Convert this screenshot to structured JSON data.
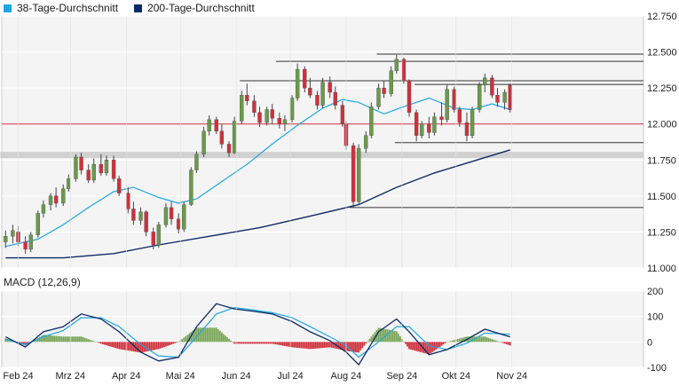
{
  "legend": {
    "ma38_label": "38-Tage-Durchschnitt",
    "ma200_label": "200-Tage-Durchschnitt",
    "ma38_color": "#1ea7df",
    "ma200_color": "#0d2a66"
  },
  "colors": {
    "up": "#6a9a4a",
    "down": "#d0303c",
    "macd_line": "#0d2a66",
    "signal_line": "#1ea7df",
    "hist_pos": "#7aa65a",
    "hist_neg": "#d0303c",
    "ref_line": "#d0303c",
    "sr_line": "#333333"
  },
  "chart_data": [
    {
      "type": "candlestick",
      "ylim": [
        11000,
        12750
      ],
      "yticks": [
        "11.000",
        "11.250",
        "11.500",
        "11.750",
        "12.000",
        "12.250",
        "12.500",
        "12.750"
      ],
      "xticks": [
        "Feb 24",
        "Mrz 24",
        "Apr 24",
        "Mai 24",
        "Jun 24",
        "Jul 24",
        "Aug 24",
        "Sep 24",
        "Okt 24",
        "Nov 24"
      ],
      "reference_line": 12000,
      "support_resistance": [
        {
          "from": "Jan 25",
          "to": "Jun 05",
          "value": 11785,
          "style": "band"
        },
        {
          "from": "Jun 05",
          "to": "Okt 31",
          "value": 12300
        },
        {
          "from": "Jun 25",
          "to": "Okt 31",
          "value": 12435
        },
        {
          "from": "Aug 20",
          "to": "Okt 31",
          "value": 12485
        },
        {
          "from": "Sep 10",
          "to": "Okt 31",
          "value": 12275
        },
        {
          "from": "Aug 30",
          "to": "Okt 31",
          "value": 11870
        },
        {
          "from": "Aug 05",
          "to": "Okt 31",
          "value": 11420
        }
      ],
      "candles": [
        {
          "d": "Jan 25",
          "o": 11180,
          "h": 11260,
          "l": 11140,
          "c": 11220
        },
        {
          "d": "Jan 29",
          "o": 11220,
          "h": 11300,
          "l": 11170,
          "c": 11260
        },
        {
          "d": "Feb 01",
          "o": 11250,
          "h": 11290,
          "l": 11150,
          "c": 11180
        },
        {
          "d": "Feb 05",
          "o": 11180,
          "h": 11220,
          "l": 11100,
          "c": 11130
        },
        {
          "d": "Feb 08",
          "o": 11130,
          "h": 11250,
          "l": 11110,
          "c": 11230
        },
        {
          "d": "Feb 12",
          "o": 11230,
          "h": 11400,
          "l": 11210,
          "c": 11380
        },
        {
          "d": "Feb 15",
          "o": 11380,
          "h": 11470,
          "l": 11350,
          "c": 11440
        },
        {
          "d": "Feb 19",
          "o": 11440,
          "h": 11520,
          "l": 11400,
          "c": 11500
        },
        {
          "d": "Feb 22",
          "o": 11500,
          "h": 11560,
          "l": 11420,
          "c": 11450
        },
        {
          "d": "Feb 26",
          "o": 11450,
          "h": 11580,
          "l": 11430,
          "c": 11550
        },
        {
          "d": "Feb 29",
          "o": 11550,
          "h": 11650,
          "l": 11530,
          "c": 11620
        },
        {
          "d": "Mrz 04",
          "o": 11620,
          "h": 11790,
          "l": 11600,
          "c": 11770
        },
        {
          "d": "Mrz 07",
          "o": 11770,
          "h": 11800,
          "l": 11650,
          "c": 11680
        },
        {
          "d": "Mrz 11",
          "o": 11680,
          "h": 11720,
          "l": 11590,
          "c": 11610
        },
        {
          "d": "Mrz 14",
          "o": 11610,
          "h": 11760,
          "l": 11590,
          "c": 11720
        },
        {
          "d": "Mrz 18",
          "o": 11720,
          "h": 11790,
          "l": 11640,
          "c": 11660
        },
        {
          "d": "Mrz 21",
          "o": 11660,
          "h": 11780,
          "l": 11640,
          "c": 11750
        },
        {
          "d": "Mrz 25",
          "o": 11750,
          "h": 11780,
          "l": 11600,
          "c": 11620
        },
        {
          "d": "Mrz 28",
          "o": 11620,
          "h": 11640,
          "l": 11500,
          "c": 11520
        },
        {
          "d": "Apr 02",
          "o": 11520,
          "h": 11560,
          "l": 11380,
          "c": 11410
        },
        {
          "d": "Apr 05",
          "o": 11410,
          "h": 11460,
          "l": 11300,
          "c": 11330
        },
        {
          "d": "Apr 09",
          "o": 11330,
          "h": 11420,
          "l": 11300,
          "c": 11390
        },
        {
          "d": "Apr 12",
          "o": 11390,
          "h": 11400,
          "l": 11220,
          "c": 11250
        },
        {
          "d": "Apr 16",
          "o": 11250,
          "h": 11280,
          "l": 11130,
          "c": 11160
        },
        {
          "d": "Apr 19",
          "o": 11160,
          "h": 11320,
          "l": 11140,
          "c": 11300
        },
        {
          "d": "Apr 23",
          "o": 11300,
          "h": 11450,
          "l": 11280,
          "c": 11420
        },
        {
          "d": "Apr 26",
          "o": 11420,
          "h": 11460,
          "l": 11300,
          "c": 11340
        },
        {
          "d": "Apr 30",
          "o": 11340,
          "h": 11380,
          "l": 11240,
          "c": 11270
        },
        {
          "d": "Mai 03",
          "o": 11270,
          "h": 11460,
          "l": 11250,
          "c": 11440
        },
        {
          "d": "Mai 07",
          "o": 11440,
          "h": 11700,
          "l": 11430,
          "c": 11680
        },
        {
          "d": "Mai 10",
          "o": 11680,
          "h": 11810,
          "l": 11660,
          "c": 11790
        },
        {
          "d": "Mai 14",
          "o": 11790,
          "h": 11980,
          "l": 11770,
          "c": 11950
        },
        {
          "d": "Mai 17",
          "o": 11950,
          "h": 12060,
          "l": 11920,
          "c": 12030
        },
        {
          "d": "Mai 21",
          "o": 12030,
          "h": 12050,
          "l": 11930,
          "c": 11950
        },
        {
          "d": "Mai 24",
          "o": 11950,
          "h": 12000,
          "l": 11830,
          "c": 11860
        },
        {
          "d": "Mai 28",
          "o": 11860,
          "h": 11880,
          "l": 11770,
          "c": 11800
        },
        {
          "d": "Mai 31",
          "o": 11800,
          "h": 12050,
          "l": 11790,
          "c": 12020
        },
        {
          "d": "Jun 04",
          "o": 12020,
          "h": 12230,
          "l": 12000,
          "c": 12200
        },
        {
          "d": "Jun 07",
          "o": 12200,
          "h": 12280,
          "l": 12130,
          "c": 12160
        },
        {
          "d": "Jun 11",
          "o": 12160,
          "h": 12200,
          "l": 12050,
          "c": 12080
        },
        {
          "d": "Jun 14",
          "o": 12080,
          "h": 12120,
          "l": 11980,
          "c": 12010
        },
        {
          "d": "Jun 18",
          "o": 12010,
          "h": 12120,
          "l": 11990,
          "c": 12100
        },
        {
          "d": "Jun 21",
          "o": 12100,
          "h": 12140,
          "l": 12000,
          "c": 12040
        },
        {
          "d": "Jun 25",
          "o": 12040,
          "h": 12080,
          "l": 11970,
          "c": 12000
        },
        {
          "d": "Jun 28",
          "o": 12000,
          "h": 12060,
          "l": 11950,
          "c": 12030
        },
        {
          "d": "Jul 02",
          "o": 12030,
          "h": 12200,
          "l": 12010,
          "c": 12180
        },
        {
          "d": "Jul 05",
          "o": 12180,
          "h": 12420,
          "l": 12160,
          "c": 12380
        },
        {
          "d": "Jul 09",
          "o": 12380,
          "h": 12400,
          "l": 12220,
          "c": 12250
        },
        {
          "d": "Jul 12",
          "o": 12250,
          "h": 12320,
          "l": 12180,
          "c": 12200
        },
        {
          "d": "Jul 16",
          "o": 12200,
          "h": 12230,
          "l": 12100,
          "c": 12130
        },
        {
          "d": "Jul 19",
          "o": 12130,
          "h": 12320,
          "l": 12110,
          "c": 12290
        },
        {
          "d": "Jul 23",
          "o": 12290,
          "h": 12330,
          "l": 12180,
          "c": 12220
        },
        {
          "d": "Jul 26",
          "o": 12220,
          "h": 12260,
          "l": 12100,
          "c": 12130
        },
        {
          "d": "Jul 30",
          "o": 12130,
          "h": 12160,
          "l": 11980,
          "c": 12000
        },
        {
          "d": "Aug 01",
          "o": 12000,
          "h": 12020,
          "l": 11820,
          "c": 11850
        },
        {
          "d": "Aug 05",
          "o": 11850,
          "h": 11870,
          "l": 11420,
          "c": 11460
        },
        {
          "d": "Aug 08",
          "o": 11460,
          "h": 11860,
          "l": 11440,
          "c": 11830
        },
        {
          "d": "Aug 12",
          "o": 11830,
          "h": 11950,
          "l": 11800,
          "c": 11920
        },
        {
          "d": "Aug 15",
          "o": 11920,
          "h": 12150,
          "l": 11900,
          "c": 12120
        },
        {
          "d": "Aug 19",
          "o": 12120,
          "h": 12280,
          "l": 12100,
          "c": 12250
        },
        {
          "d": "Aug 22",
          "o": 12250,
          "h": 12300,
          "l": 12180,
          "c": 12210
        },
        {
          "d": "Aug 26",
          "o": 12210,
          "h": 12400,
          "l": 12190,
          "c": 12370
        },
        {
          "d": "Aug 29",
          "o": 12370,
          "h": 12480,
          "l": 12350,
          "c": 12450
        },
        {
          "d": "Sep 02",
          "o": 12450,
          "h": 12460,
          "l": 12280,
          "c": 12300
        },
        {
          "d": "Sep 05",
          "o": 12300,
          "h": 12310,
          "l": 12050,
          "c": 12080
        },
        {
          "d": "Sep 09",
          "o": 12080,
          "h": 12100,
          "l": 11880,
          "c": 11920
        },
        {
          "d": "Sep 12",
          "o": 11920,
          "h": 12020,
          "l": 11900,
          "c": 12000
        },
        {
          "d": "Sep 16",
          "o": 12000,
          "h": 12050,
          "l": 11900,
          "c": 11940
        },
        {
          "d": "Sep 19",
          "o": 11940,
          "h": 12080,
          "l": 11920,
          "c": 12050
        },
        {
          "d": "Sep 23",
          "o": 12050,
          "h": 12150,
          "l": 11990,
          "c": 12030
        },
        {
          "d": "Sep 26",
          "o": 12030,
          "h": 12270,
          "l": 12010,
          "c": 12240
        },
        {
          "d": "Sep 30",
          "o": 12240,
          "h": 12260,
          "l": 12080,
          "c": 12100
        },
        {
          "d": "Okt 03",
          "o": 12100,
          "h": 12120,
          "l": 11980,
          "c": 12010
        },
        {
          "d": "Okt 07",
          "o": 12010,
          "h": 12080,
          "l": 11880,
          "c": 11920
        },
        {
          "d": "Okt 10",
          "o": 11920,
          "h": 12120,
          "l": 11900,
          "c": 12100
        },
        {
          "d": "Okt 14",
          "o": 12100,
          "h": 12290,
          "l": 12080,
          "c": 12270
        },
        {
          "d": "Okt 17",
          "o": 12270,
          "h": 12350,
          "l": 12220,
          "c": 12320
        },
        {
          "d": "Okt 21",
          "o": 12320,
          "h": 12340,
          "l": 12180,
          "c": 12200
        },
        {
          "d": "Okt 24",
          "o": 12200,
          "h": 12250,
          "l": 12120,
          "c": 12150
        },
        {
          "d": "Okt 28",
          "o": 12150,
          "h": 12240,
          "l": 12100,
          "c": 12220
        },
        {
          "d": "Okt 31",
          "o": 12270,
          "h": 12280,
          "l": 12080,
          "c": 12100
        }
      ],
      "ma38": [
        {
          "d": "Jan 25",
          "v": 11150
        },
        {
          "d": "Feb 12",
          "v": 11200
        },
        {
          "d": "Feb 26",
          "v": 11300
        },
        {
          "d": "Mrz 11",
          "v": 11420
        },
        {
          "d": "Mrz 25",
          "v": 11530
        },
        {
          "d": "Apr 05",
          "v": 11560
        },
        {
          "d": "Apr 19",
          "v": 11490
        },
        {
          "d": "Apr 30",
          "v": 11450
        },
        {
          "d": "Mai 10",
          "v": 11480
        },
        {
          "d": "Mai 24",
          "v": 11600
        },
        {
          "d": "Jun 07",
          "v": 11720
        },
        {
          "d": "Jun 21",
          "v": 11860
        },
        {
          "d": "Jul 05",
          "v": 11990
        },
        {
          "d": "Jul 19",
          "v": 12110
        },
        {
          "d": "Jul 30",
          "v": 12170
        },
        {
          "d": "Aug 08",
          "v": 12150
        },
        {
          "d": "Aug 22",
          "v": 12070
        },
        {
          "d": "Sep 02",
          "v": 12120
        },
        {
          "d": "Sep 16",
          "v": 12180
        },
        {
          "d": "Sep 30",
          "v": 12110
        },
        {
          "d": "Okt 10",
          "v": 12100
        },
        {
          "d": "Okt 21",
          "v": 12140
        },
        {
          "d": "Okt 31",
          "v": 12100
        }
      ],
      "ma200": [
        {
          "d": "Jan 25",
          "v": 11070
        },
        {
          "d": "Feb 26",
          "v": 11070
        },
        {
          "d": "Mrz 25",
          "v": 11100
        },
        {
          "d": "Apr 19",
          "v": 11160
        },
        {
          "d": "Mai 17",
          "v": 11220
        },
        {
          "d": "Jun 14",
          "v": 11280
        },
        {
          "d": "Jul 12",
          "v": 11360
        },
        {
          "d": "Aug 08",
          "v": 11440
        },
        {
          "d": "Aug 29",
          "v": 11560
        },
        {
          "d": "Sep 19",
          "v": 11660
        },
        {
          "d": "Okt 10",
          "v": 11740
        },
        {
          "d": "Okt 31",
          "v": 11820
        }
      ]
    },
    {
      "type": "bar",
      "title": "MACD (12,26,9)",
      "ylim": [
        -100,
        200
      ],
      "yticks": [
        "-100",
        "0",
        "100",
        "200"
      ],
      "macd": [
        {
          "d": "Jan 25",
          "v": 20
        },
        {
          "d": "Feb 05",
          "v": -20
        },
        {
          "d": "Feb 15",
          "v": 40
        },
        {
          "d": "Feb 26",
          "v": 60
        },
        {
          "d": "Mrz 07",
          "v": 110
        },
        {
          "d": "Mrz 18",
          "v": 90
        },
        {
          "d": "Mrz 28",
          "v": 40
        },
        {
          "d": "Apr 09",
          "v": -40
        },
        {
          "d": "Apr 19",
          "v": -75
        },
        {
          "d": "Apr 30",
          "v": -60
        },
        {
          "d": "Mai 10",
          "v": 60
        },
        {
          "d": "Mai 21",
          "v": 150
        },
        {
          "d": "Mai 31",
          "v": 130
        },
        {
          "d": "Jun 11",
          "v": 120
        },
        {
          "d": "Jun 21",
          "v": 110
        },
        {
          "d": "Jul 02",
          "v": 80
        },
        {
          "d": "Jul 12",
          "v": 40
        },
        {
          "d": "Jul 23",
          "v": 5
        },
        {
          "d": "Aug 01",
          "v": -40
        },
        {
          "d": "Aug 08",
          "v": -90
        },
        {
          "d": "Aug 19",
          "v": 40
        },
        {
          "d": "Aug 29",
          "v": 90
        },
        {
          "d": "Sep 05",
          "v": 40
        },
        {
          "d": "Sep 16",
          "v": -50
        },
        {
          "d": "Sep 26",
          "v": -30
        },
        {
          "d": "Okt 07",
          "v": 10
        },
        {
          "d": "Okt 17",
          "v": 50
        },
        {
          "d": "Okt 31",
          "v": 20
        }
      ],
      "signal": [
        {
          "d": "Jan 25",
          "v": 10
        },
        {
          "d": "Feb 05",
          "v": -10
        },
        {
          "d": "Feb 15",
          "v": 20
        },
        {
          "d": "Feb 26",
          "v": 45
        },
        {
          "d": "Mrz 07",
          "v": 95
        },
        {
          "d": "Mrz 18",
          "v": 95
        },
        {
          "d": "Mrz 28",
          "v": 60
        },
        {
          "d": "Apr 09",
          "v": -10
        },
        {
          "d": "Apr 19",
          "v": -55
        },
        {
          "d": "Apr 30",
          "v": -60
        },
        {
          "d": "Mai 10",
          "v": 20
        },
        {
          "d": "Mai 21",
          "v": 110
        },
        {
          "d": "Mai 31",
          "v": 135
        },
        {
          "d": "Jun 11",
          "v": 125
        },
        {
          "d": "Jun 21",
          "v": 115
        },
        {
          "d": "Jul 02",
          "v": 95
        },
        {
          "d": "Jul 12",
          "v": 60
        },
        {
          "d": "Jul 23",
          "v": 20
        },
        {
          "d": "Aug 01",
          "v": -15
        },
        {
          "d": "Aug 08",
          "v": -60
        },
        {
          "d": "Aug 19",
          "v": 0
        },
        {
          "d": "Aug 29",
          "v": 60
        },
        {
          "d": "Sep 05",
          "v": 60
        },
        {
          "d": "Sep 16",
          "v": -15
        },
        {
          "d": "Sep 26",
          "v": -30
        },
        {
          "d": "Okt 07",
          "v": -5
        },
        {
          "d": "Okt 17",
          "v": 35
        },
        {
          "d": "Okt 31",
          "v": 30
        }
      ]
    }
  ]
}
